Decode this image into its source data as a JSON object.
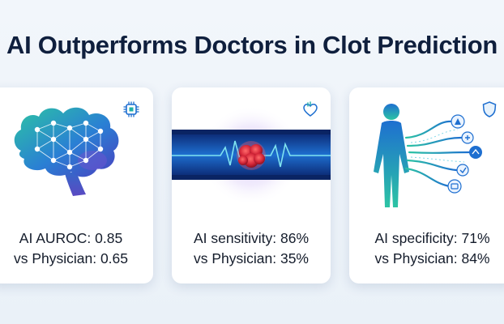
{
  "title": "AI Outperforms Doctors in Clot Prediction",
  "colors": {
    "title": "#0f1f3d",
    "accent_blue": "#1e6fd0",
    "accent_teal": "#1fb0a8",
    "clot_red": "#d6283a",
    "card_bg": "#ffffff"
  },
  "cards": [
    {
      "icon": "chip-icon",
      "illustration": "neural-brain",
      "line1": "AI AUROC: 0.85",
      "line2": "vs Physician: 0.65"
    },
    {
      "icon": "heart-icon",
      "illustration": "blood-vessel-clot",
      "line1": "AI sensitivity: 86%",
      "line2": "vs Physician: 35%"
    },
    {
      "icon": "shield-icon",
      "illustration": "human-figure-signals",
      "line1": "AI specificity: 71%",
      "line2": "vs Physician: 84%"
    }
  ]
}
